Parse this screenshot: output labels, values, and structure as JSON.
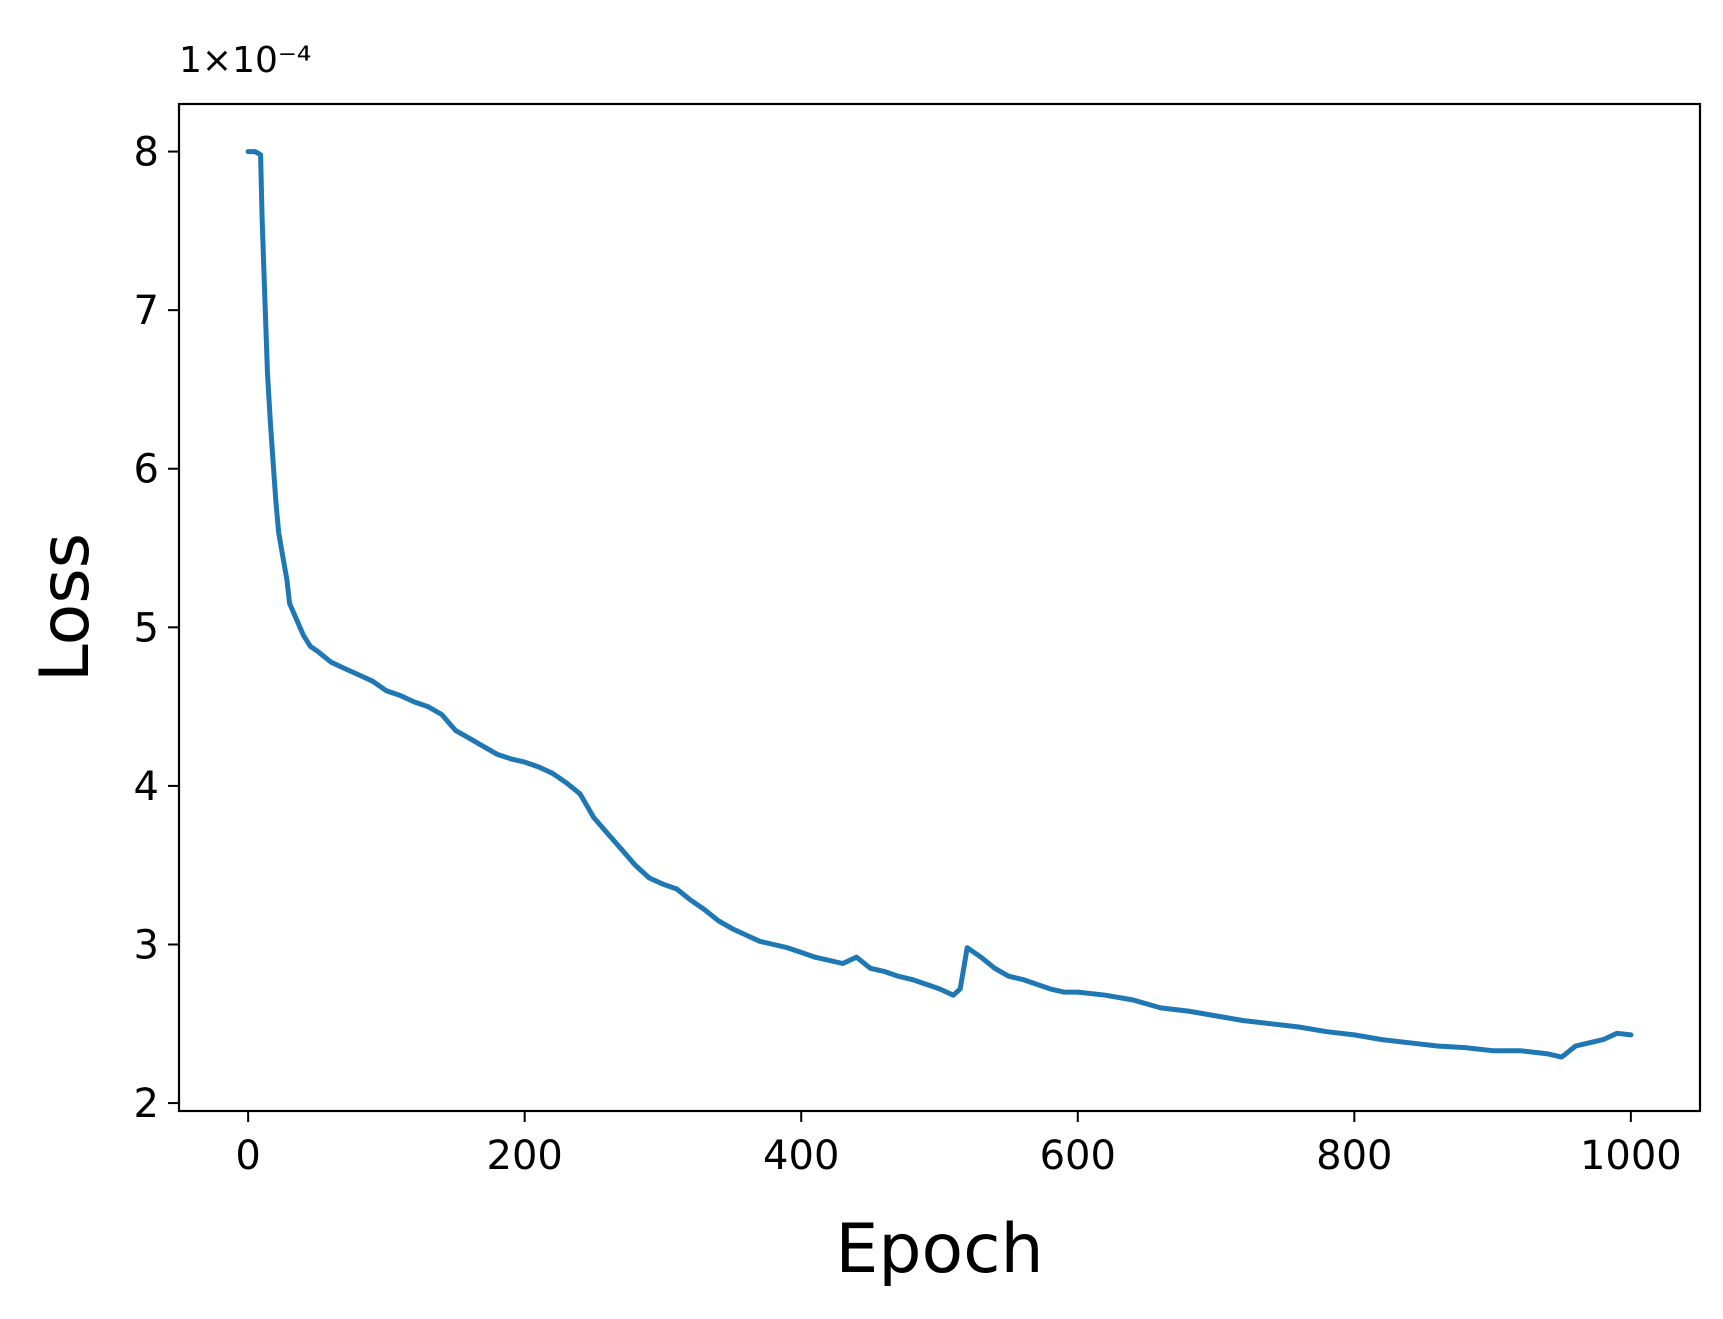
{
  "chart_data": {
    "type": "line",
    "title": "",
    "xlabel": "Epoch",
    "ylabel": "Loss",
    "y_offset_label": "1×10⁻⁴",
    "y_multiplier": 0.0001,
    "xlim": [
      -50,
      1050
    ],
    "ylim": [
      1.95,
      8.3
    ],
    "xticks": [
      0,
      200,
      400,
      600,
      800,
      1000
    ],
    "xtick_labels": [
      "0",
      "200",
      "400",
      "600",
      "800",
      "1000"
    ],
    "yticks": [
      2,
      3,
      4,
      5,
      6,
      7,
      8
    ],
    "ytick_labels": [
      "2",
      "3",
      "4",
      "5",
      "6",
      "7",
      "8"
    ],
    "grid": false,
    "line_color": "#1f77b4",
    "series": [
      {
        "x": [
          0,
          5,
          9,
          10,
          12,
          14,
          16,
          18,
          20,
          22,
          25,
          28,
          30,
          35,
          40,
          45,
          50,
          60,
          70,
          80,
          90,
          100,
          110,
          120,
          130,
          140,
          150,
          160,
          170,
          180,
          190,
          200,
          210,
          220,
          230,
          240,
          250,
          260,
          270,
          280,
          290,
          300,
          310,
          320,
          330,
          340,
          350,
          360,
          370,
          380,
          390,
          400,
          410,
          420,
          430,
          440,
          450,
          460,
          470,
          480,
          490,
          500,
          510,
          515,
          520,
          530,
          540,
          550,
          560,
          570,
          580,
          590,
          600,
          620,
          640,
          660,
          680,
          700,
          720,
          740,
          760,
          780,
          800,
          820,
          840,
          860,
          880,
          900,
          920,
          940,
          950,
          960,
          970,
          980,
          990,
          1000
        ],
        "values": [
          8.0,
          8.0,
          7.98,
          7.6,
          7.1,
          6.6,
          6.3,
          6.05,
          5.8,
          5.6,
          5.45,
          5.3,
          5.15,
          5.05,
          4.95,
          4.88,
          4.85,
          4.78,
          4.74,
          4.7,
          4.66,
          4.6,
          4.57,
          4.53,
          4.5,
          4.45,
          4.35,
          4.3,
          4.25,
          4.2,
          4.17,
          4.15,
          4.12,
          4.08,
          4.02,
          3.95,
          3.8,
          3.7,
          3.6,
          3.5,
          3.42,
          3.38,
          3.35,
          3.28,
          3.22,
          3.15,
          3.1,
          3.06,
          3.02,
          3.0,
          2.98,
          2.95,
          2.92,
          2.9,
          2.88,
          2.92,
          2.85,
          2.83,
          2.8,
          2.78,
          2.75,
          2.72,
          2.68,
          2.72,
          2.98,
          2.92,
          2.85,
          2.8,
          2.78,
          2.75,
          2.72,
          2.7,
          2.7,
          2.68,
          2.65,
          2.6,
          2.58,
          2.55,
          2.52,
          2.5,
          2.48,
          2.45,
          2.43,
          2.4,
          2.38,
          2.36,
          2.35,
          2.33,
          2.33,
          2.31,
          2.29,
          2.36,
          2.38,
          2.4,
          2.44,
          2.43
        ]
      }
    ]
  }
}
